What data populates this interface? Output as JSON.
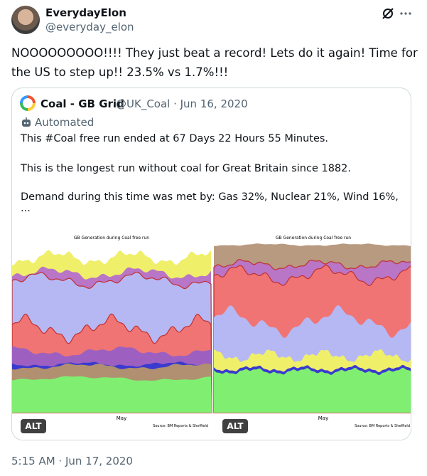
{
  "author": {
    "name": "EverydayElon",
    "handle": "@everyday_elon"
  },
  "text": "NOOOOOOOOO!!!! They just beat a record! Lets do it again! Time for the US to step up!! 23.5% vs 1.7%!!!",
  "quote": {
    "name": "Coal - GB Grid",
    "meta": "@UK_Coal · Jun 16, 2020",
    "label": "Automated",
    "paragraphs": [
      "This #Coal free run ended at 67 Days 22 Hours 55 Minutes.",
      "This is the longest run without coal for Great Britain since 1882.",
      "Demand during this time was met by: Gas 32%, Nuclear 21%, Wind 16%, ..."
    ],
    "images": [
      {
        "title": "GB Generation during Coal free run",
        "x_label": "May",
        "source": "Source: BM Reports & Sheffield",
        "alt": "ALT"
      },
      {
        "title": "GB Generation during Coal free run",
        "x_label": "May",
        "source": "Source: BM Reports & Sheffield",
        "alt": "ALT"
      }
    ]
  },
  "timestamp": "5:15 AM · Jun 17, 2020"
}
